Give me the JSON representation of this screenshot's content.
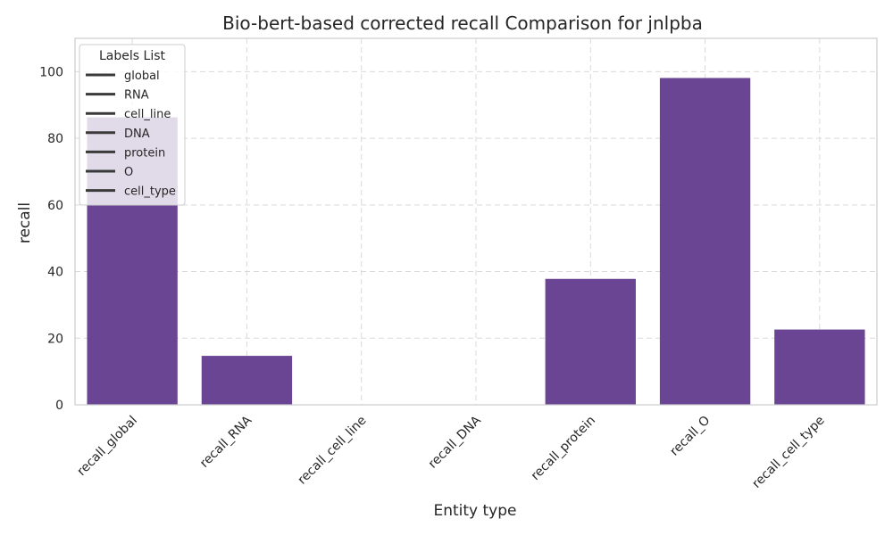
{
  "chart_data": {
    "type": "bar",
    "title": "Bio-bert-based corrected recall Comparison for jnlpba",
    "xlabel": "Entity type",
    "ylabel": "recall",
    "categories": [
      "recall_global",
      "recall_RNA",
      "recall_cell_line",
      "recall_DNA",
      "recall_protein",
      "recall_O",
      "recall_cell_type"
    ],
    "values": [
      86.3,
      14.7,
      0,
      0,
      37.8,
      98.1,
      22.6
    ],
    "ylim": [
      0,
      110
    ],
    "yticks": [
      0,
      20,
      40,
      60,
      80,
      100
    ],
    "grid": true,
    "bar_color": "#6a4593",
    "legend": {
      "title": "Labels List",
      "placement": "top-left",
      "entries": [
        "global",
        "RNA",
        "cell_line",
        "DNA",
        "protein",
        "O",
        "cell_type"
      ]
    }
  }
}
